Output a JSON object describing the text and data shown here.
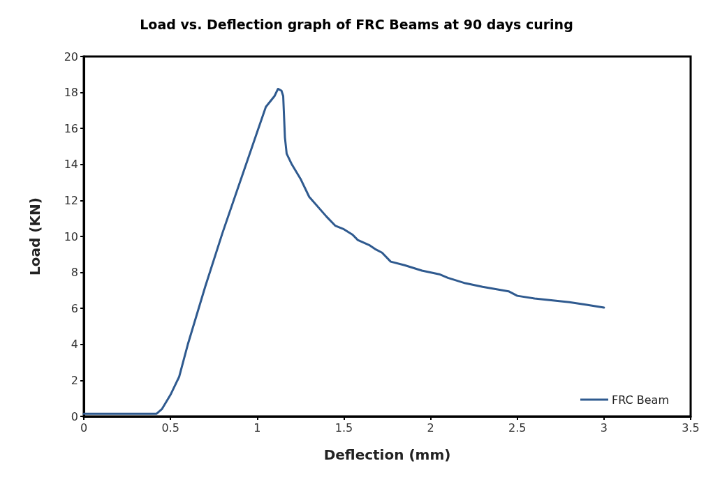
{
  "chart_data": {
    "type": "line",
    "title": "Load vs. Deflection graph of FRC Beams at 90 days curing",
    "xlabel": "Deflection (mm)",
    "ylabel": "Load (KN)",
    "xlim": [
      0,
      3.5
    ],
    "xticks": [
      0,
      0.5,
      1,
      1.5,
      2,
      2.5,
      3,
      3.5
    ],
    "ylim": [
      0,
      20
    ],
    "yticks": [
      0,
      2,
      4,
      6,
      8,
      10,
      12,
      14,
      16,
      18,
      20
    ],
    "grid": false,
    "legend": "bottom right",
    "marker": "none",
    "line_style": "solid",
    "series": [
      {
        "name": "FRC Beam",
        "color": "#2f5a8f",
        "x": [
          0,
          0.42,
          0.45,
          0.5,
          0.55,
          0.6,
          0.7,
          0.8,
          0.9,
          1.0,
          1.05,
          1.1,
          1.12,
          1.14,
          1.15,
          1.16,
          1.17,
          1.2,
          1.25,
          1.3,
          1.4,
          1.45,
          1.5,
          1.55,
          1.58,
          1.65,
          1.68,
          1.72,
          1.77,
          1.85,
          1.95,
          2.05,
          2.1,
          2.2,
          2.3,
          2.45,
          2.5,
          2.6,
          2.8,
          2.9,
          3.0
        ],
        "values": [
          0.15,
          0.15,
          0.4,
          1.2,
          2.2,
          4,
          7.2,
          10.2,
          13.0,
          15.8,
          17.2,
          17.8,
          18.2,
          18.1,
          17.8,
          15.5,
          14.6,
          14.0,
          13.2,
          12.2,
          11.1,
          10.6,
          10.4,
          10.1,
          9.8,
          9.5,
          9.3,
          9.1,
          8.6,
          8.4,
          8.1,
          7.9,
          7.7,
          7.4,
          7.2,
          6.95,
          6.7,
          6.55,
          6.35,
          6.2,
          6.05
        ]
      }
    ]
  }
}
